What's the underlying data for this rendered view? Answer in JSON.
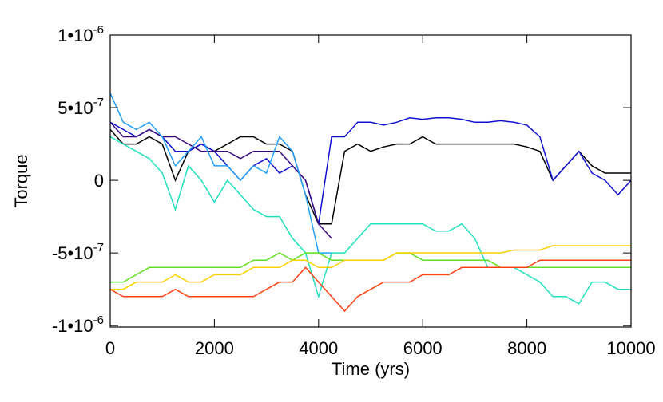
{
  "chart_data": {
    "type": "line",
    "xlabel": "Time (yrs)",
    "ylabel": "Torque",
    "xlim": [
      0,
      10000
    ],
    "xticks": [
      0,
      2000,
      4000,
      6000,
      8000,
      10000
    ],
    "ylim": [
      -1.01e-06,
      1e-06
    ],
    "yticks": [
      {
        "value": -1e-06,
        "label": "-1•10",
        "power": "-6"
      },
      {
        "value": -5e-07,
        "label": "-5•10",
        "power": "-7"
      },
      0,
      {
        "value": 5e-07,
        "label": "5•10",
        "power": "-7"
      },
      {
        "value": 1e-06,
        "label": "1•10",
        "power": "-6"
      }
    ],
    "x": [
      0,
      250,
      500,
      750,
      1000,
      1250,
      1500,
      1750,
      2000,
      2250,
      2500,
      2750,
      3000,
      3250,
      3500,
      3750,
      4000,
      4250,
      4500,
      4750,
      5000,
      5250,
      5500,
      5750,
      6000,
      6250,
      6500,
      6750,
      7000,
      7250,
      7500,
      7750,
      8000,
      8250,
      8500,
      8750,
      9000,
      9250,
      9500,
      9750,
      10000
    ],
    "series": [
      {
        "color": "#000000",
        "values": [
          3.5e-07,
          2.5e-07,
          2.5e-07,
          3e-07,
          2.5e-07,
          0,
          2e-07,
          2.5e-07,
          2e-07,
          2.5e-07,
          3e-07,
          3e-07,
          2.5e-07,
          2.5e-07,
          2e-07,
          -1e-07,
          -3e-07,
          -3e-07,
          2e-07,
          2.5e-07,
          2e-07,
          2.3e-07,
          2.5e-07,
          2.5e-07,
          3e-07,
          2.5e-07,
          2.5e-07,
          2.5e-07,
          2.5e-07,
          2.5e-07,
          2.5e-07,
          2.5e-07,
          2.3e-07,
          2e-07,
          0,
          1e-07,
          2e-07,
          1e-07,
          5e-08,
          5e-08,
          5e-08
        ]
      },
      {
        "color": "#1010d0",
        "values": [
          4e-07,
          3.5e-07,
          3e-07,
          3.5e-07,
          3e-07,
          2e-07,
          2e-07,
          2.5e-07,
          2e-07,
          1e-07,
          0,
          1e-07,
          1.5e-07,
          5e-08,
          1e-07,
          0,
          -3e-07,
          3e-07,
          3e-07,
          4e-07,
          4e-07,
          3.8e-07,
          4e-07,
          4.3e-07,
          4.2e-07,
          4.3e-07,
          4.3e-07,
          4.2e-07,
          4e-07,
          4e-07,
          4.1e-07,
          4e-07,
          3.8e-07,
          3e-07,
          0,
          1e-07,
          2e-07,
          5e-08,
          0,
          -1e-07,
          0
        ]
      },
      {
        "color": "#3a0a80",
        "values": [
          4e-07,
          3e-07,
          3e-07,
          3.5e-07,
          3e-07,
          3e-07,
          2.5e-07,
          2e-07,
          2e-07,
          2e-07,
          1.5e-07,
          2e-07,
          2e-07,
          2e-07,
          1e-07,
          0,
          -3e-07,
          -4e-07,
          null,
          null,
          null,
          null,
          null,
          null,
          null,
          null,
          null,
          null,
          null,
          null,
          null,
          null,
          null,
          null,
          null,
          null,
          null,
          null,
          null,
          null,
          null
        ]
      },
      {
        "color": "#20a0ff",
        "values": [
          6e-07,
          4e-07,
          3.5e-07,
          4e-07,
          3e-07,
          1e-07,
          2e-07,
          3e-07,
          1e-07,
          1e-07,
          0,
          1e-07,
          5e-08,
          3e-07,
          2e-07,
          -1e-07,
          -5e-07,
          -5e-07,
          null,
          null,
          null,
          null,
          null,
          null,
          null,
          null,
          null,
          null,
          null,
          null,
          null,
          null,
          null,
          null,
          null,
          null,
          null,
          null,
          null,
          null,
          null
        ]
      },
      {
        "color": "#20e0c0",
        "values": [
          3e-07,
          2.5e-07,
          2e-07,
          1.5e-07,
          5e-08,
          -2e-07,
          1e-07,
          0,
          -1.5e-07,
          0,
          -1e-07,
          -2e-07,
          -2.5e-07,
          -2.5e-07,
          -4e-07,
          -5e-07,
          -8e-07,
          -5e-07,
          -5e-07,
          -4e-07,
          -3e-07,
          -3e-07,
          -3e-07,
          -3e-07,
          -3e-07,
          -3.5e-07,
          -3.5e-07,
          -3e-07,
          -4e-07,
          -6e-07,
          -6e-07,
          -6e-07,
          -6.5e-07,
          -7e-07,
          -8e-07,
          -8e-07,
          -8.5e-07,
          -7e-07,
          -7e-07,
          -7.5e-07,
          -7.5e-07
        ]
      },
      {
        "color": "#60e020",
        "values": [
          -7e-07,
          -7e-07,
          -6.5e-07,
          -6e-07,
          -6e-07,
          -6e-07,
          -6e-07,
          -6e-07,
          -6e-07,
          -6e-07,
          -6e-07,
          -5.5e-07,
          -5.5e-07,
          -5e-07,
          -5.5e-07,
          -5e-07,
          -5e-07,
          -5.5e-07,
          -5.5e-07,
          -5.5e-07,
          -5.5e-07,
          -5.5e-07,
          -5e-07,
          -5e-07,
          -5.5e-07,
          -5.5e-07,
          -5.5e-07,
          -5.5e-07,
          -5.5e-07,
          -5.5e-07,
          -6e-07,
          -6e-07,
          -6e-07,
          -6e-07,
          -6e-07,
          -6e-07,
          -6e-07,
          -6e-07,
          -6e-07,
          -6e-07,
          -6e-07
        ]
      },
      {
        "color": "#ffd000",
        "values": [
          -7.5e-07,
          -7.5e-07,
          -7e-07,
          -7e-07,
          -7e-07,
          -6.5e-07,
          -7e-07,
          -7e-07,
          -6.5e-07,
          -6.5e-07,
          -6.5e-07,
          -6e-07,
          -6e-07,
          -6e-07,
          -5.5e-07,
          -5.5e-07,
          -6e-07,
          -6e-07,
          -5.5e-07,
          -5.5e-07,
          -5.5e-07,
          -5.5e-07,
          -5e-07,
          -5e-07,
          -5e-07,
          -5e-07,
          -5e-07,
          -5e-07,
          -5e-07,
          -5e-07,
          -5e-07,
          -4.8e-07,
          -4.8e-07,
          -4.8e-07,
          -4.5e-07,
          -4.5e-07,
          -4.5e-07,
          -4.5e-07,
          -4.5e-07,
          -4.5e-07,
          -4.5e-07
        ]
      },
      {
        "color": "#ff4010",
        "values": [
          -7.5e-07,
          -8e-07,
          -8e-07,
          -8e-07,
          -8e-07,
          -7.5e-07,
          -8e-07,
          -8e-07,
          -8e-07,
          -8e-07,
          -8e-07,
          -8e-07,
          -7.5e-07,
          -7e-07,
          -7e-07,
          -6e-07,
          -7e-07,
          -8e-07,
          -9e-07,
          -8e-07,
          -7.5e-07,
          -7e-07,
          -7e-07,
          -7e-07,
          -6.5e-07,
          -6.5e-07,
          -6.5e-07,
          -6e-07,
          -6e-07,
          -6e-07,
          -6e-07,
          -6e-07,
          -6e-07,
          -5.5e-07,
          -5.5e-07,
          -5.5e-07,
          -5.5e-07,
          -5.5e-07,
          -5.5e-07,
          -5.5e-07,
          -5.5e-07
        ]
      }
    ]
  }
}
